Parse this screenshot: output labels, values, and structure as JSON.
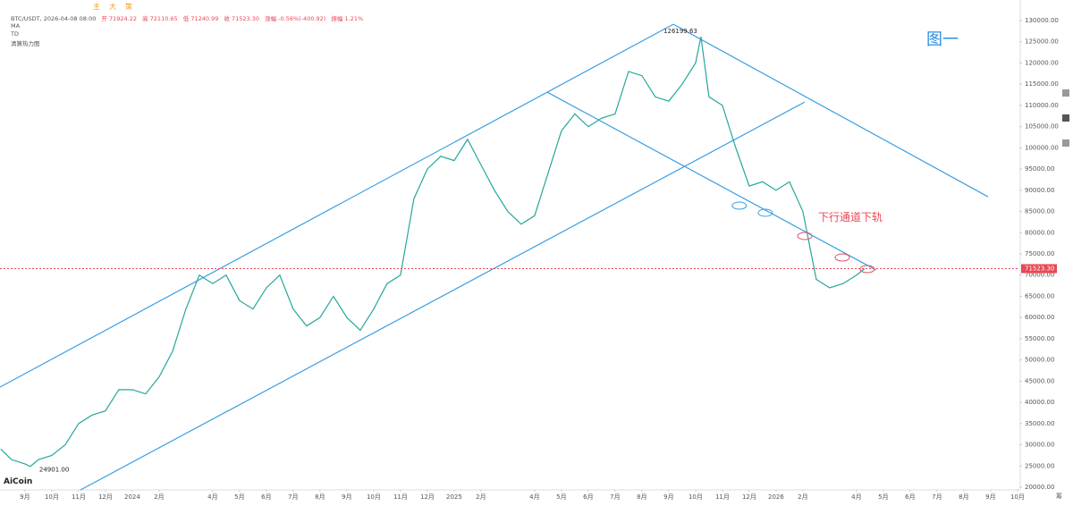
{
  "header": {
    "symbol": "BTC/USDT, 2026-04-08 08:00",
    "quote": [
      "开 71924.22",
      "高 72110.65",
      "低 71240.99",
      "收 71523.30",
      "涨幅 -0.56%(-400.92)",
      "振幅 1.21%"
    ],
    "indicators": [
      "MA",
      "TD",
      "清算热力图"
    ],
    "toolbar": [
      "主",
      "大",
      "策"
    ],
    "brand": "AiCoin",
    "figure_label": "图一",
    "side_label": "筹"
  },
  "chart_data": {
    "type": "line",
    "color": "#26a69a",
    "x": [
      -0.9,
      -0.5,
      0,
      0.2,
      0.5,
      1,
      1.5,
      2,
      2.5,
      3,
      3.5,
      4,
      4.5,
      5,
      5.5,
      6,
      6.5,
      7,
      7.5,
      8,
      8.5,
      9,
      9.5,
      10,
      10.5,
      11,
      11.5,
      12,
      12.5,
      13,
      13.5,
      14,
      14.5,
      15,
      15.5,
      16,
      16.5,
      17,
      17.5,
      18,
      18.5,
      19,
      19.5,
      20,
      20.5,
      21,
      21.5,
      22,
      22.5,
      23,
      23.5,
      24,
      24.5,
      25,
      25.2,
      25.5,
      26,
      26.5,
      27,
      27.5,
      28,
      28.5,
      29,
      29.5,
      30,
      30.5,
      31,
      31.3
    ],
    "values": [
      29000,
      26500,
      25500,
      24901,
      26500,
      27500,
      30000,
      35000,
      37000,
      38000,
      43000,
      43000,
      42000,
      46000,
      52000,
      62000,
      70000,
      68000,
      70000,
      64000,
      62000,
      67000,
      70000,
      62000,
      58000,
      60000,
      65000,
      60000,
      57000,
      62000,
      68000,
      70000,
      88000,
      95000,
      98000,
      97000,
      102000,
      96000,
      90000,
      85000,
      82000,
      84000,
      94000,
      104000,
      108000,
      105000,
      107000,
      108000,
      118000,
      117000,
      112000,
      111000,
      115000,
      120000,
      126199.63,
      112000,
      110000,
      100000,
      91000,
      92000,
      90000,
      92000,
      85000,
      69000,
      67000,
      68000,
      70000,
      71523.3
    ],
    "value_labels": [
      null,
      null,
      null,
      "24901.00",
      null,
      null,
      null,
      null,
      null,
      null,
      null,
      null,
      null,
      null,
      null,
      null,
      null,
      null,
      null,
      null,
      null,
      null,
      null,
      null,
      null,
      null,
      null,
      null,
      null,
      null,
      null,
      null,
      null,
      null,
      null,
      null,
      null,
      null,
      null,
      null,
      null,
      null,
      null,
      null,
      null,
      null,
      null,
      null,
      null,
      null,
      null,
      null,
      null,
      null,
      "126199.63",
      null,
      null,
      null,
      null,
      null,
      null,
      null,
      null,
      null,
      null,
      null,
      null,
      "71523.30"
    ],
    "xlim": [
      -0.93,
      37.07
    ],
    "ylim": [
      20000,
      134850
    ],
    "xticks": [
      {
        "value": 0,
        "label": "9月"
      },
      {
        "value": 1,
        "label": "10月"
      },
      {
        "value": 2,
        "label": "11月"
      },
      {
        "value": 3,
        "label": "12月"
      },
      {
        "value": 4,
        "label": "2024"
      },
      {
        "value": 5,
        "label": "2月"
      },
      {
        "value": 7,
        "label": "4月"
      },
      {
        "value": 8,
        "label": "5月"
      },
      {
        "value": 9,
        "label": "6月"
      },
      {
        "value": 10,
        "label": "7月"
      },
      {
        "value": 11,
        "label": "8月"
      },
      {
        "value": 12,
        "label": "9月"
      },
      {
        "value": 13,
        "label": "10月"
      },
      {
        "value": 14,
        "label": "11月"
      },
      {
        "value": 15,
        "label": "12月"
      },
      {
        "value": 16,
        "label": "2025"
      },
      {
        "value": 17,
        "label": "2月"
      },
      {
        "value": 19,
        "label": "4月"
      },
      {
        "value": 20,
        "label": "5月"
      },
      {
        "value": 21,
        "label": "6月"
      },
      {
        "value": 22,
        "label": "7月"
      },
      {
        "value": 23,
        "label": "8月"
      },
      {
        "value": 24,
        "label": "9月"
      },
      {
        "value": 25,
        "label": "10月"
      },
      {
        "value": 26,
        "label": "11月"
      },
      {
        "value": 27,
        "label": "12月"
      },
      {
        "value": 28,
        "label": "2026"
      },
      {
        "value": 29,
        "label": "2月"
      },
      {
        "value": 31,
        "label": "4月"
      },
      {
        "value": 32,
        "label": "5月"
      },
      {
        "value": 33,
        "label": "6月"
      },
      {
        "value": 34,
        "label": "7月"
      },
      {
        "value": 35,
        "label": "8月"
      },
      {
        "value": 36,
        "label": "9月"
      },
      {
        "value": 37,
        "label": "10月"
      }
    ],
    "yticks": [
      {
        "value": 20000,
        "label": "20000.00"
      },
      {
        "value": 25000,
        "label": "25000.00"
      },
      {
        "value": 30000,
        "label": "30000.00"
      },
      {
        "value": 35000,
        "label": "35000.00"
      },
      {
        "value": 40000,
        "label": "40000.00"
      },
      {
        "value": 45000,
        "label": "45000.00"
      },
      {
        "value": 50000,
        "label": "50000.00"
      },
      {
        "value": 55000,
        "label": "55000.00"
      },
      {
        "value": 60000,
        "label": "60000.00"
      },
      {
        "value": 65000,
        "label": "65000.00"
      },
      {
        "value": 70000,
        "label": "70000.00"
      },
      {
        "value": 75000,
        "label": "75000.00"
      },
      {
        "value": 80000,
        "label": "80000.00"
      },
      {
        "value": 85000,
        "label": "85000.00"
      },
      {
        "value": 90000,
        "label": "90000.00"
      },
      {
        "value": 95000,
        "label": "95000.00"
      },
      {
        "value": 100000,
        "label": "100000.00"
      },
      {
        "value": 105000,
        "label": "105000.00"
      },
      {
        "value": 110000,
        "label": "110000.00"
      },
      {
        "value": 115000,
        "label": "115000.00"
      },
      {
        "value": 120000,
        "label": "120000.00"
      },
      {
        "value": 125000,
        "label": "125000.00"
      },
      {
        "value": 130000,
        "label": "130000.00"
      }
    ],
    "grid": false,
    "trend_lines": [
      {
        "from": [
          -0.93,
          43600
        ],
        "to": [
          24.17,
          129140
        ],
        "color": "#3a9ee4"
      },
      {
        "from": [
          2.07,
          19370
        ],
        "to": [
          29.07,
          110800
        ],
        "color": "#3a9ee4"
      },
      {
        "from": [
          24.17,
          129140
        ],
        "to": [
          35.9,
          88480
        ],
        "color": "#3a9ee4"
      },
      {
        "from": [
          19.47,
          113130
        ],
        "to": [
          31.73,
          71200
        ],
        "color": "#3a9ee4"
      }
    ],
    "circles": [
      {
        "x": 26.63,
        "y": 86370,
        "color": "#3a9ee4"
      },
      {
        "x": 27.6,
        "y": 84690,
        "color": "#3a9ee4"
      },
      {
        "x": 29.07,
        "y": 79210,
        "color": "#e05060"
      },
      {
        "x": 30.47,
        "y": 74150,
        "color": "#e05060"
      },
      {
        "x": 31.4,
        "y": 71410,
        "color": "#e05060"
      }
    ],
    "annotation": "下行通道下轨",
    "last_price_color": "#e84855"
  }
}
